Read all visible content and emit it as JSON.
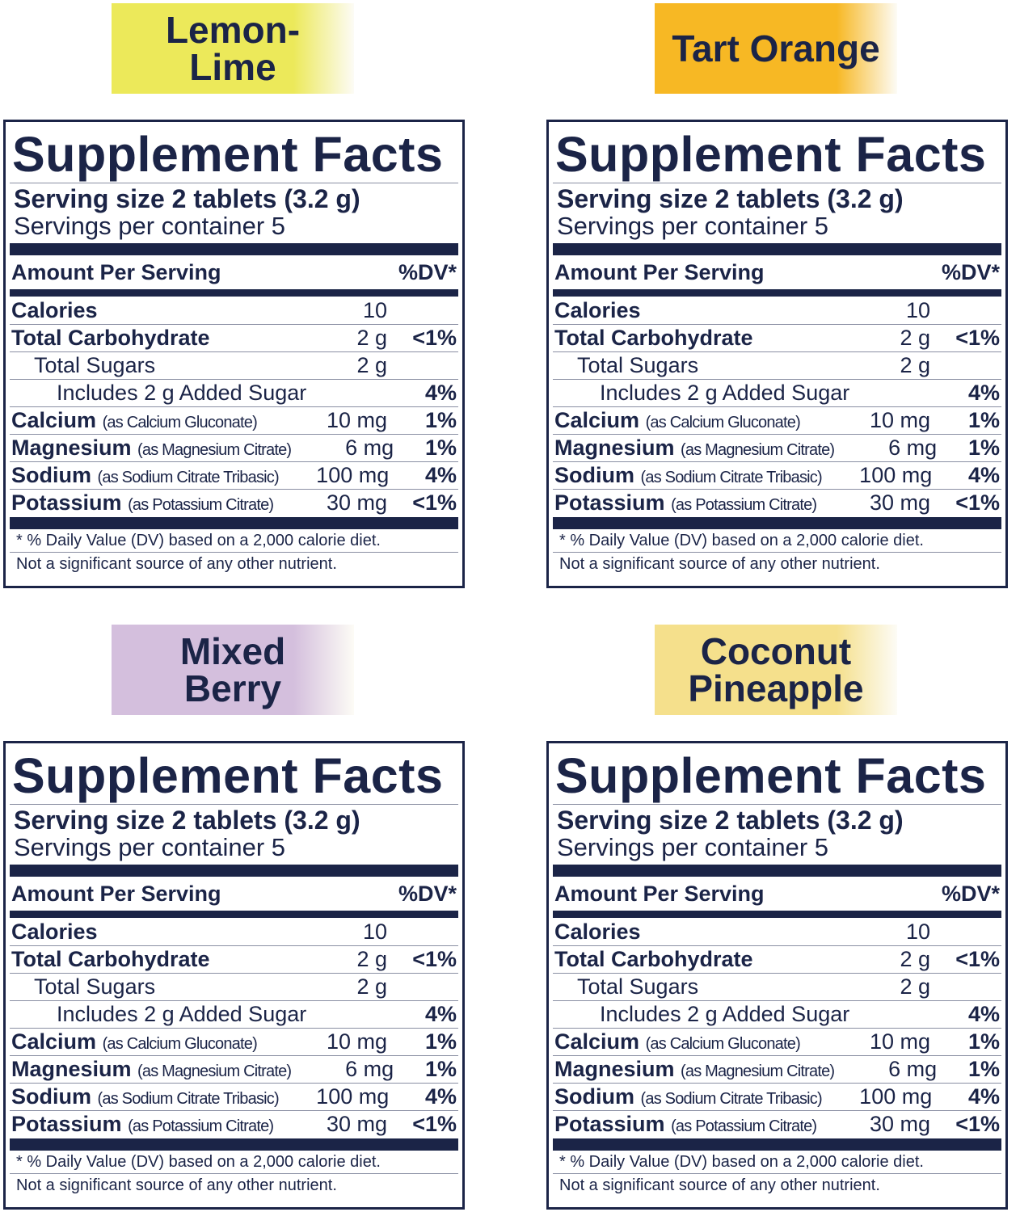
{
  "colors": {
    "ink": "#1b2447"
  },
  "panels": [
    {
      "flavor": "Lemon-\nLime",
      "flavor_color": "#ece95a"
    },
    {
      "flavor": "Tart Orange",
      "flavor_color": "#f7b824"
    },
    {
      "flavor": "Mixed\nBerry",
      "flavor_color": "#d4bfdd"
    },
    {
      "flavor": "Coconut\nPineapple",
      "flavor_color": "#f5e08c"
    }
  ],
  "facts": {
    "title": "Supplement Facts",
    "serving_size": "Serving size 2 tablets (3.2 g)",
    "servings_per_container": "Servings per container 5",
    "amount_per_serving": "Amount Per Serving",
    "dv_header": "%DV*",
    "rows": [
      {
        "name": "Calories",
        "source": "",
        "amount": "10",
        "dv": "",
        "indent": 0,
        "bold": true
      },
      {
        "name": "Total Carbohydrate",
        "source": "",
        "amount": "2 g",
        "dv": "<1%",
        "indent": 0,
        "bold": true
      },
      {
        "name": "Total Sugars",
        "source": "",
        "amount": "2 g",
        "dv": "",
        "indent": 1,
        "bold": false
      },
      {
        "name": "Includes 2 g Added Sugar",
        "source": "",
        "amount": "",
        "dv": "4%",
        "indent": 2,
        "bold": false
      },
      {
        "name": "Calcium",
        "source": "(as Calcium Gluconate)",
        "amount": "10 mg",
        "dv": "1%",
        "indent": 0,
        "bold": true
      },
      {
        "name": "Magnesium",
        "source": "(as Magnesium Citrate)",
        "amount": "6 mg",
        "dv": "1%",
        "indent": 0,
        "bold": true
      },
      {
        "name": "Sodium",
        "source": "(as Sodium Citrate Tribasic)",
        "amount": "100 mg",
        "dv": "4%",
        "indent": 0,
        "bold": true
      },
      {
        "name": "Potassium",
        "source": "(as Potassium Citrate)",
        "amount": "30 mg",
        "dv": "<1%",
        "indent": 0,
        "bold": true
      }
    ],
    "footnote": "* % Daily Value (DV) based on a 2,000 calorie diet.",
    "note": "Not a significant source of any other nutrient."
  }
}
